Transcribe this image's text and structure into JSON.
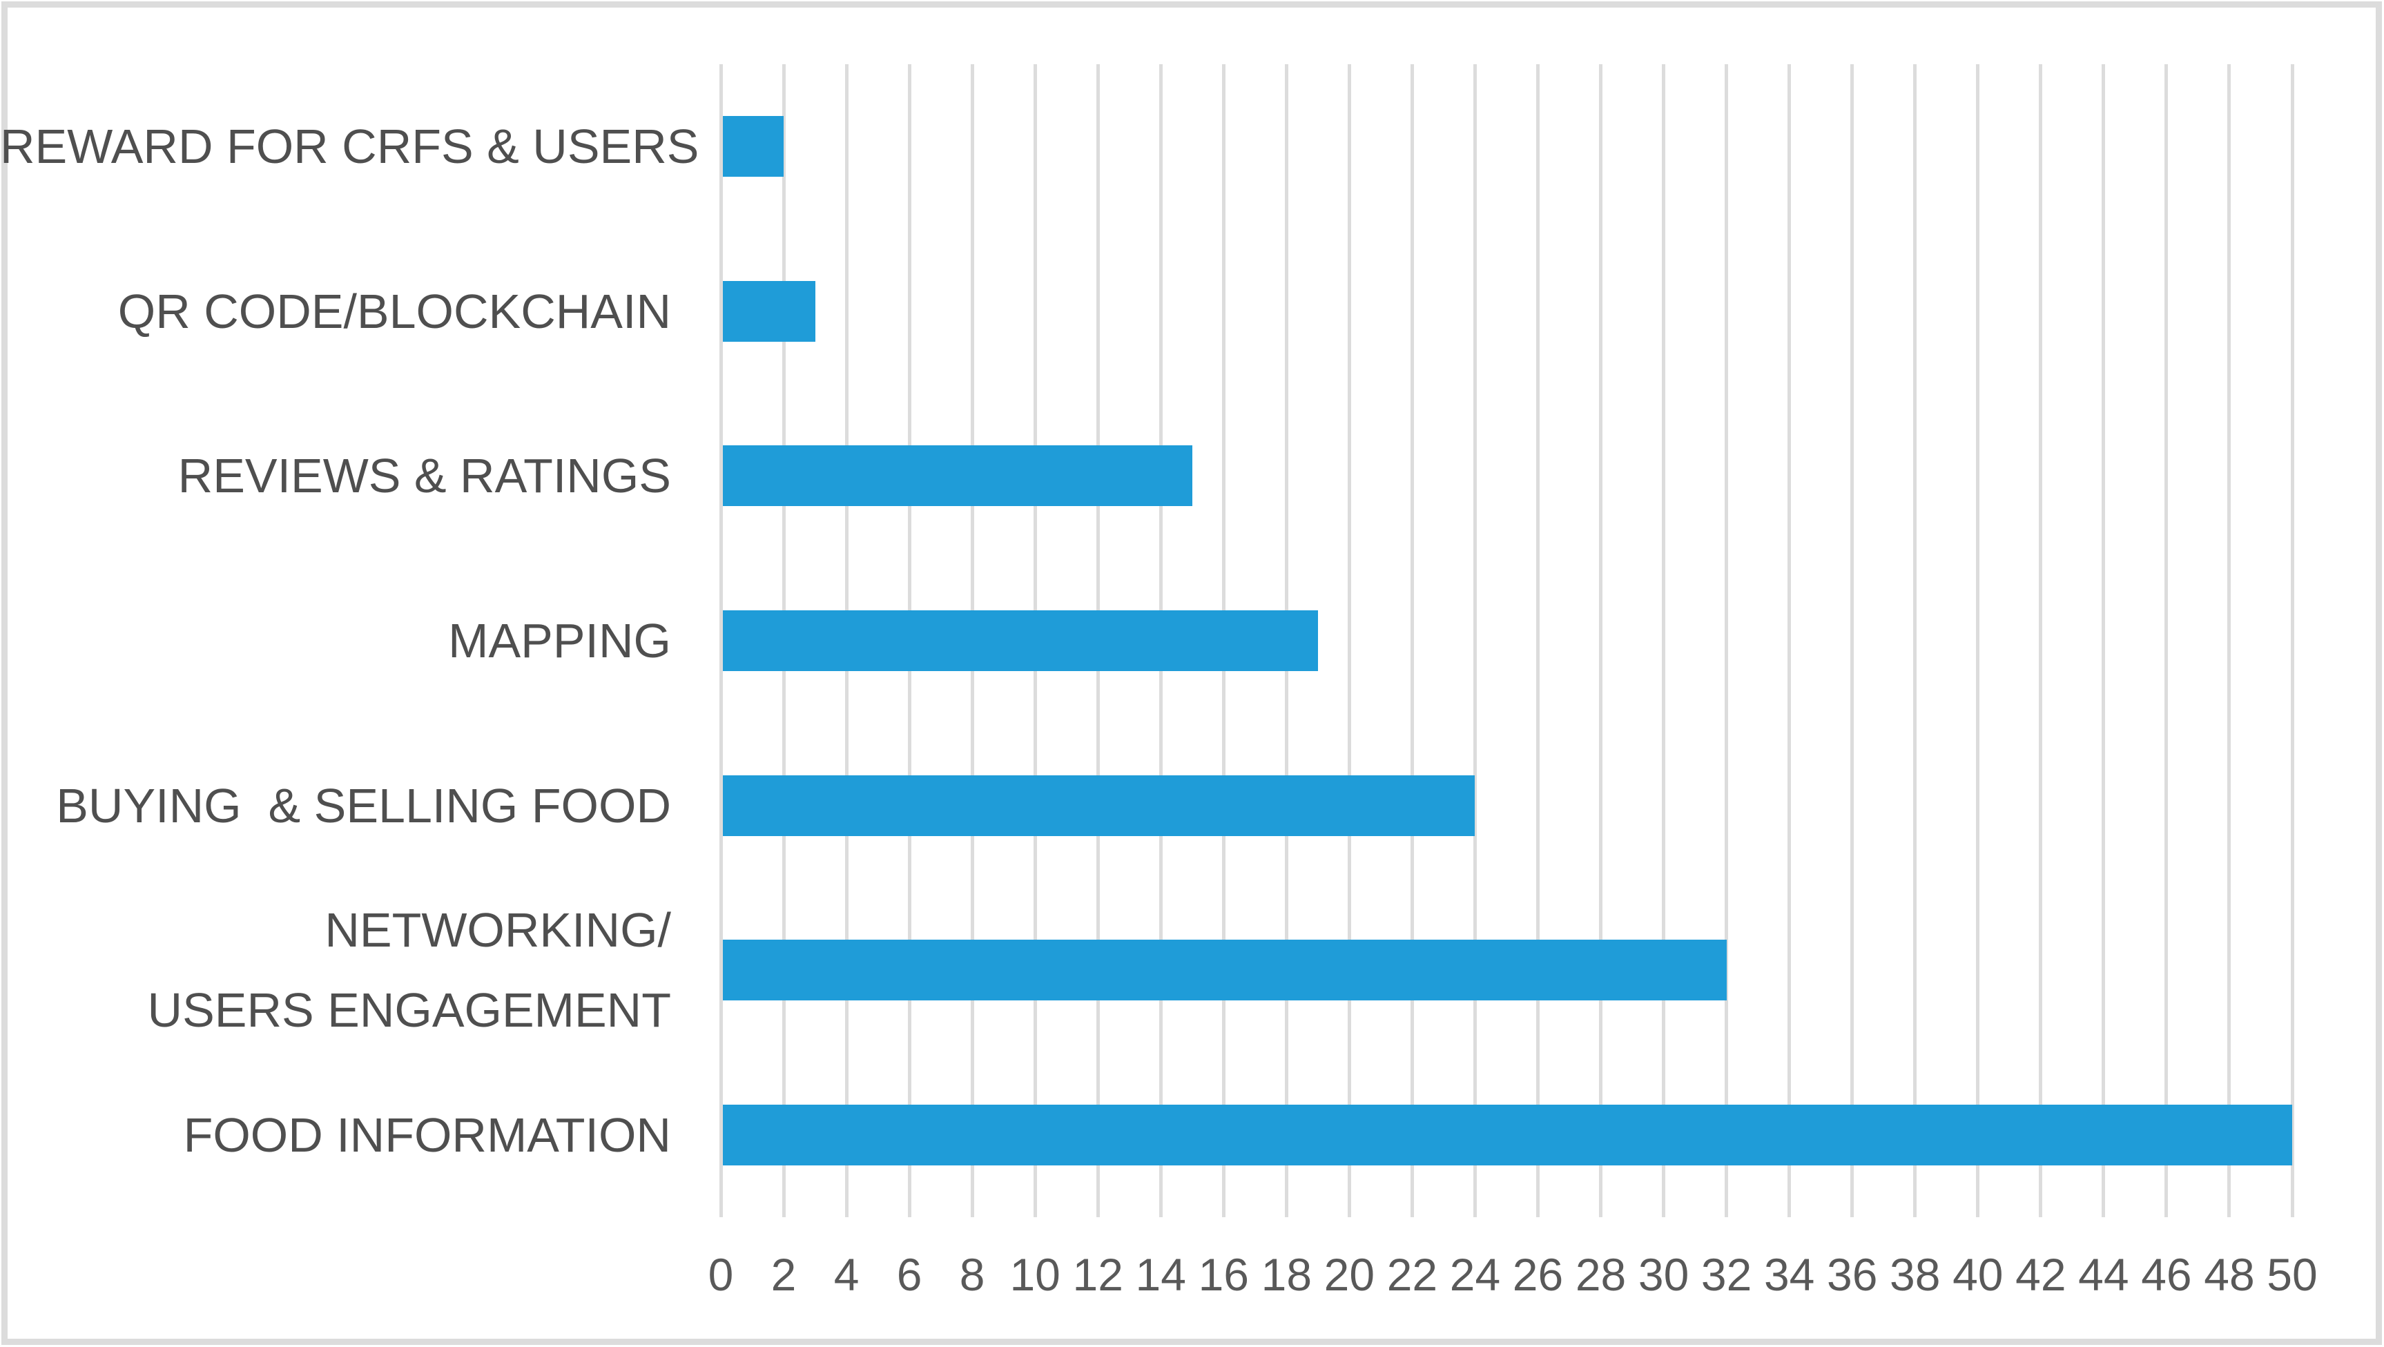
{
  "chart_data": {
    "type": "bar",
    "orientation": "horizontal",
    "title": "",
    "categories": [
      {
        "label": "REWARD FOR CRFS & USERS",
        "lines": [
          "REWARD FOR CRFS & USERS"
        ]
      },
      {
        "label": "QR CODE/BLOCKCHAIN",
        "lines": [
          "QR CODE/BLOCKCHAIN"
        ]
      },
      {
        "label": "REVIEWS & RATINGS",
        "lines": [
          "REVIEWS & RATINGS"
        ]
      },
      {
        "label": "MAPPING",
        "lines": [
          "MAPPING"
        ]
      },
      {
        "label": "BUYING  & SELLING FOOD",
        "lines": [
          "BUYING  & SELLING FOOD"
        ]
      },
      {
        "label": "NETWORKING/ USERS ENGAGEMENT",
        "lines": [
          "NETWORKING/",
          "USERS ENGAGEMENT"
        ]
      },
      {
        "label": "FOOD INFORMATION",
        "lines": [
          "FOOD INFORMATION"
        ]
      }
    ],
    "values": [
      2,
      3,
      15,
      19,
      24,
      32,
      50
    ],
    "xlabel": "",
    "ylabel": "",
    "xlim": [
      0,
      50
    ],
    "x_ticks": [
      0,
      2,
      4,
      6,
      8,
      10,
      12,
      14,
      16,
      18,
      20,
      22,
      24,
      26,
      28,
      30,
      32,
      34,
      36,
      38,
      40,
      42,
      44,
      46,
      48,
      50
    ],
    "grid": "vertical-major-only",
    "legend_position": "none",
    "colors": {
      "bar": "#1f9cd8",
      "gridline": "#dcdcdc",
      "tick_text": "#595959",
      "category_text": "#4f4f4f",
      "frame_border": "#dcdcdc",
      "background": "#ffffff"
    }
  }
}
